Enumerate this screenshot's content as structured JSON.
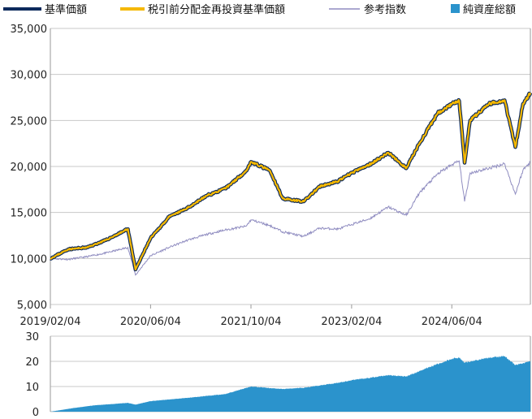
{
  "legend": {
    "nav_label": "基準価額",
    "reinvest_label": "税引前分配金再投資基準価額",
    "benchmark_label": "参考指数",
    "assets_label": "純資産総額"
  },
  "colors": {
    "nav": "#0d2a5c",
    "reinvest": "#f5b800",
    "benchmark": "#8f8cc0",
    "assets": "#2b93cc"
  },
  "chart_data": [
    {
      "type": "line",
      "x_ticks": [
        "2019/02/04",
        "2020/06/04",
        "2021/10/04",
        "2023/02/04",
        "2024/06/04"
      ],
      "ylim": [
        5000,
        35000
      ],
      "y_ticks": [
        "5,000",
        "10,000",
        "15,000",
        "20,000",
        "25,000",
        "30,000",
        "35,000"
      ],
      "grid": true,
      "legend_position": "top",
      "series": [
        {
          "name": "基準価額",
          "x": [
            "2019/02/04",
            "2019/05/01",
            "2019/08/01",
            "2019/11/01",
            "2020/02/15",
            "2020/03/23",
            "2020/06/04",
            "2020/09/01",
            "2020/12/01",
            "2021/03/01",
            "2021/06/01",
            "2021/09/10",
            "2021/10/04",
            "2022/01/01",
            "2022/03/08",
            "2022/06/17",
            "2022/09/01",
            "2022/12/01",
            "2023/02/04",
            "2023/05/01",
            "2023/08/01",
            "2023/10/27",
            "2024/01/01",
            "2024/03/28",
            "2024/06/04",
            "2024/07/10",
            "2024/08/05",
            "2024/09/01",
            "2024/12/01",
            "2025/02/15",
            "2025/04/08",
            "2025/05/15",
            "2025/06/20"
          ],
          "values": [
            10000,
            11000,
            11200,
            12000,
            13200,
            8800,
            12200,
            14500,
            15500,
            16800,
            17600,
            19500,
            20500,
            19600,
            16500,
            16200,
            17800,
            18400,
            19300,
            20200,
            21500,
            19800,
            22600,
            25800,
            26800,
            27100,
            20400,
            25000,
            26800,
            27200,
            22100,
            26800,
            28000
          ]
        },
        {
          "name": "税引前分配金再投資基準価額",
          "x": [
            "2019/02/04",
            "2019/05/01",
            "2019/08/01",
            "2019/11/01",
            "2020/02/15",
            "2020/03/23",
            "2020/06/04",
            "2020/09/01",
            "2020/12/01",
            "2021/03/01",
            "2021/06/01",
            "2021/09/10",
            "2021/10/04",
            "2022/01/01",
            "2022/03/08",
            "2022/06/17",
            "2022/09/01",
            "2022/12/01",
            "2023/02/04",
            "2023/05/01",
            "2023/08/01",
            "2023/10/27",
            "2024/01/01",
            "2024/03/28",
            "2024/06/04",
            "2024/07/10",
            "2024/08/05",
            "2024/09/01",
            "2024/12/01",
            "2025/02/15",
            "2025/04/08",
            "2025/05/15",
            "2025/06/20"
          ],
          "values": [
            10000,
            11000,
            11200,
            12000,
            13200,
            8800,
            12200,
            14500,
            15500,
            16800,
            17600,
            19500,
            20500,
            19600,
            16500,
            16200,
            17800,
            18400,
            19300,
            20200,
            21500,
            19800,
            22600,
            25800,
            26800,
            27100,
            20400,
            25000,
            26800,
            27200,
            22100,
            26800,
            28000
          ]
        },
        {
          "name": "参考指数",
          "x": [
            "2019/02/04",
            "2019/05/01",
            "2019/08/01",
            "2019/11/01",
            "2020/02/15",
            "2020/03/23",
            "2020/06/04",
            "2020/09/01",
            "2020/12/01",
            "2021/03/01",
            "2021/06/01",
            "2021/09/10",
            "2021/10/04",
            "2022/01/01",
            "2022/03/08",
            "2022/06/17",
            "2022/09/01",
            "2022/12/01",
            "2023/02/04",
            "2023/05/01",
            "2023/08/01",
            "2023/10/27",
            "2024/01/01",
            "2024/03/28",
            "2024/06/04",
            "2024/07/10",
            "2024/08/05",
            "2024/09/01",
            "2024/12/01",
            "2025/02/15",
            "2025/04/08",
            "2025/05/15",
            "2025/06/20"
          ],
          "values": [
            10000,
            9900,
            10200,
            10600,
            11200,
            8200,
            10300,
            11200,
            12000,
            12600,
            13100,
            13500,
            14200,
            13600,
            12900,
            12400,
            13300,
            13200,
            13700,
            14300,
            15600,
            14700,
            17200,
            19200,
            20200,
            20600,
            16200,
            19300,
            19800,
            20300,
            17000,
            19600,
            20500
          ]
        }
      ]
    },
    {
      "type": "area",
      "x": [
        "2019/02/04",
        "2019/06/01",
        "2019/09/01",
        "2020/02/15",
        "2020/03/23",
        "2020/06/04",
        "2020/12/01",
        "2021/06/01",
        "2021/10/04",
        "2022/03/08",
        "2022/06/17",
        "2022/12/01",
        "2023/02/04",
        "2023/08/01",
        "2023/10/27",
        "2024/03/28",
        "2024/06/04",
        "2024/07/10",
        "2024/08/05",
        "2024/12/01",
        "2025/02/15",
        "2025/04/08",
        "2025/06/20"
      ],
      "values": [
        0,
        1.5,
        2.5,
        3.5,
        2.8,
        4.2,
        5.5,
        7.0,
        10.0,
        9.0,
        9.5,
        11.5,
        12.5,
        14.5,
        14.0,
        19.0,
        21.0,
        21.5,
        19.5,
        21.5,
        22.0,
        18.5,
        20.0
      ],
      "ylim": [
        0,
        30
      ],
      "y_ticks": [
        "0",
        "10",
        "20",
        "30"
      ],
      "grid": true,
      "series": [
        {
          "name": "純資産総額"
        }
      ]
    }
  ]
}
